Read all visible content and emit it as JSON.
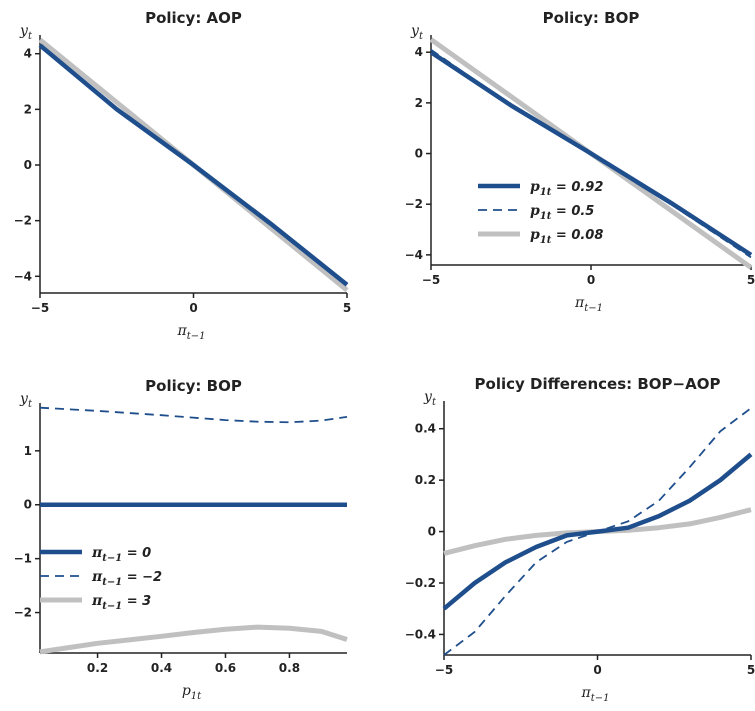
{
  "colors": {
    "navy": "#1f4e8c",
    "gray": "#c0c0c0",
    "axis": "#222222",
    "text": "#222222"
  },
  "chart_data": [
    {
      "id": "tl",
      "type": "line",
      "title": "Policy: AOP",
      "ylabel": {
        "main": "y",
        "sub": "t"
      },
      "xlabel": {
        "main": "π",
        "sub": "t−1"
      },
      "xlim": [
        -5,
        5
      ],
      "ylim": [
        -4.6,
        4.6
      ],
      "xticks": [
        {
          "v": -5,
          "label": "−5"
        },
        {
          "v": 0,
          "label": "0"
        },
        {
          "v": 5,
          "label": "5"
        }
      ],
      "yticks": [
        {
          "v": -4,
          "label": "−4"
        },
        {
          "v": -2,
          "label": "−2"
        },
        {
          "v": 0,
          "label": "0"
        },
        {
          "v": 2,
          "label": "2"
        },
        {
          "v": 4,
          "label": "4"
        }
      ],
      "series": [
        {
          "style": "gray",
          "x": [
            -5,
            5
          ],
          "y": [
            4.5,
            -4.5
          ]
        },
        {
          "style": "navy",
          "x": [
            -5,
            -2.5,
            0,
            2.5,
            5
          ],
          "y": [
            4.3,
            2.0,
            0,
            -2.1,
            -4.3
          ]
        }
      ],
      "legend": []
    },
    {
      "id": "tr",
      "type": "line",
      "title": "Policy: BOP",
      "ylabel": {
        "main": "y",
        "sub": "t"
      },
      "xlabel": {
        "main": "π",
        "sub": "t−1"
      },
      "xlim": [
        -5,
        5
      ],
      "ylim": [
        -4.4,
        4.6
      ],
      "xticks": [
        {
          "v": -5,
          "label": "−5"
        },
        {
          "v": 0,
          "label": "0"
        },
        {
          "v": 5,
          "label": "5"
        }
      ],
      "yticks": [
        {
          "v": -4,
          "label": "−4"
        },
        {
          "v": -2,
          "label": "−2"
        },
        {
          "v": 0,
          "label": "0"
        },
        {
          "v": 2,
          "label": "2"
        },
        {
          "v": 4,
          "label": "4"
        }
      ],
      "series": [
        {
          "style": "gray",
          "x": [
            -5,
            5
          ],
          "y": [
            4.5,
            -4.5
          ]
        },
        {
          "style": "dash",
          "x": [
            -5,
            -2.5,
            0,
            2.5,
            5
          ],
          "y": [
            4.1,
            1.9,
            0,
            -2.0,
            -4.1
          ]
        },
        {
          "style": "navy",
          "x": [
            -5,
            -2.5,
            0,
            2.5,
            5
          ],
          "y": [
            4.0,
            1.9,
            0,
            -1.95,
            -4.0
          ]
        }
      ],
      "legend": [
        {
          "style": "navy",
          "main": "p",
          "sub": "1t",
          "text": " = 0.92"
        },
        {
          "style": "dash",
          "main": "p",
          "sub": "1t",
          "text": " = 0.5"
        },
        {
          "style": "gray",
          "main": "p",
          "sub": "1t",
          "text": " = 0.08"
        }
      ]
    },
    {
      "id": "bl",
      "type": "line",
      "title": "Policy: BOP",
      "ylabel": {
        "main": "y",
        "sub": "t"
      },
      "xlabel": {
        "main": "p",
        "sub": "1t"
      },
      "xlim": [
        0.02,
        0.98
      ],
      "ylim": [
        -2.75,
        1.85
      ],
      "xticks": [
        {
          "v": 0.2,
          "label": "0.2"
        },
        {
          "v": 0.4,
          "label": "0.4"
        },
        {
          "v": 0.6,
          "label": "0.6"
        },
        {
          "v": 0.8,
          "label": "0.8"
        }
      ],
      "yticks": [
        {
          "v": -2,
          "label": "−2"
        },
        {
          "v": -1,
          "label": "−1"
        },
        {
          "v": 0,
          "label": "0"
        },
        {
          "v": 1,
          "label": "1"
        }
      ],
      "series": [
        {
          "style": "navy",
          "x": [
            0.02,
            0.98
          ],
          "y": [
            0,
            0
          ]
        },
        {
          "style": "dash",
          "x": [
            0.02,
            0.2,
            0.4,
            0.6,
            0.7,
            0.8,
            0.9,
            0.98
          ],
          "y": [
            1.8,
            1.74,
            1.66,
            1.57,
            1.54,
            1.53,
            1.56,
            1.63
          ]
        },
        {
          "style": "gray",
          "x": [
            0.02,
            0.2,
            0.4,
            0.5,
            0.6,
            0.7,
            0.8,
            0.9,
            0.98
          ],
          "y": [
            -2.73,
            -2.57,
            -2.44,
            -2.37,
            -2.31,
            -2.27,
            -2.29,
            -2.35,
            -2.5
          ]
        }
      ],
      "legend": [
        {
          "style": "navy",
          "main": "π",
          "sub": "t−1",
          "text": " = 0"
        },
        {
          "style": "dash",
          "main": "π",
          "sub": "t−1",
          "text": " = −2"
        },
        {
          "style": "gray",
          "main": "π",
          "sub": "t−1",
          "text": " = 3"
        }
      ]
    },
    {
      "id": "br",
      "type": "line",
      "title": "Policy Differences: BOP−AOP",
      "ylabel": {
        "main": "y",
        "sub": "t"
      },
      "xlabel": {
        "main": "π",
        "sub": "t−1"
      },
      "xlim": [
        -5,
        5
      ],
      "ylim": [
        -0.48,
        0.5
      ],
      "xticks": [
        {
          "v": -5,
          "label": "−5"
        },
        {
          "v": 0,
          "label": "0"
        },
        {
          "v": 5,
          "label": "5"
        }
      ],
      "yticks": [
        {
          "v": -0.4,
          "label": "−0.4"
        },
        {
          "v": -0.2,
          "label": "−0.2"
        },
        {
          "v": 0,
          "label": "0"
        },
        {
          "v": 0.2,
          "label": "0.2"
        },
        {
          "v": 0.4,
          "label": "0.4"
        }
      ],
      "series": [
        {
          "style": "gray",
          "x": [
            -5,
            -4,
            -3,
            -2,
            -1,
            0,
            1,
            2,
            3,
            4,
            5
          ],
          "y": [
            -0.085,
            -0.055,
            -0.03,
            -0.015,
            -0.005,
            0,
            0.005,
            0.015,
            0.03,
            0.055,
            0.085
          ]
        },
        {
          "style": "dash",
          "x": [
            -5,
            -4,
            -3,
            -2,
            -1,
            0,
            1,
            2,
            3,
            4,
            5
          ],
          "y": [
            -0.48,
            -0.39,
            -0.25,
            -0.12,
            -0.04,
            0,
            0.04,
            0.12,
            0.25,
            0.39,
            0.48
          ]
        },
        {
          "style": "navy",
          "x": [
            -5,
            -4,
            -3,
            -2,
            -1,
            0,
            1,
            2,
            3,
            4,
            5
          ],
          "y": [
            -0.3,
            -0.2,
            -0.12,
            -0.06,
            -0.015,
            0,
            0.015,
            0.06,
            0.12,
            0.2,
            0.3
          ]
        }
      ],
      "legend": []
    }
  ]
}
